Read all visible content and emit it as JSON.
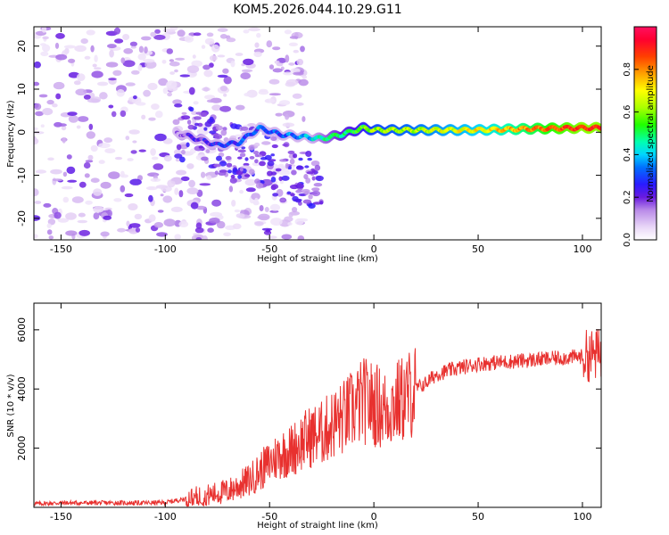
{
  "chart_data": [
    {
      "type": "heatmap",
      "title": "KOM5.2026.044.10.29.G11",
      "xlabel": "Height of straight line (km)",
      "ylabel": "Frequency (Hz)",
      "xlim": [
        -163,
        109
      ],
      "ylim": [
        -25,
        24.5
      ],
      "xticks": [
        -150,
        -100,
        -50,
        0,
        50,
        100
      ],
      "yticks": [
        -20,
        -10,
        0,
        10,
        20
      ],
      "colorbar": {
        "label": "Normalized spectral amplitude",
        "range": [
          0,
          1
        ],
        "ticks": [
          "0.0",
          "0.2",
          "0.4",
          "0.6",
          "0.8"
        ]
      },
      "ridge": {
        "description": "dominant frequency ridge",
        "x": [
          -95,
          -85,
          -75,
          -65,
          -55,
          -45,
          -35,
          -25,
          -15,
          -5,
          0,
          25,
          50,
          75,
          100,
          109
        ],
        "y": [
          0,
          -1.5,
          -3.0,
          -2.5,
          1.0,
          -0.5,
          -1.0,
          -1.5,
          -0.5,
          1.0,
          0.5,
          0.5,
          0.5,
          0.8,
          1.0,
          1.0
        ],
        "amplitude": [
          0.15,
          0.2,
          0.25,
          0.3,
          0.3,
          0.3,
          0.35,
          0.45,
          0.5,
          0.55,
          0.6,
          0.65,
          0.7,
          0.8,
          0.9,
          0.9
        ]
      }
    },
    {
      "type": "line",
      "xlabel": "Height of straight line (km)",
      "ylabel": "SNR (10 * v/v)",
      "xlim": [
        -163,
        109
      ],
      "ylim": [
        0,
        6900
      ],
      "xticks": [
        -150,
        -100,
        -50,
        0,
        50,
        100
      ],
      "yticks": [
        2000,
        4000,
        6000
      ],
      "series": [
        {
          "name": "SNR",
          "color": "#e8312f",
          "x": [
            -163,
            -150,
            -125,
            -110,
            -100,
            -90,
            -80,
            -70,
            -60,
            -50,
            -45,
            -40,
            -35,
            -30,
            -25,
            -20,
            -15,
            -10,
            -5,
            0,
            5,
            10,
            15,
            20,
            25,
            30,
            40,
            50,
            60,
            70,
            80,
            90,
            100,
            105,
            109
          ],
          "y": [
            120,
            150,
            150,
            150,
            160,
            300,
            400,
            550,
            900,
            1500,
            1800,
            1900,
            2200,
            2400,
            2500,
            2800,
            3000,
            3300,
            3600,
            3500,
            3300,
            3500,
            3700,
            4000,
            4200,
            4500,
            4700,
            4850,
            4900,
            4950,
            5000,
            5050,
            5100,
            5150,
            5200
          ]
        }
      ]
    }
  ]
}
